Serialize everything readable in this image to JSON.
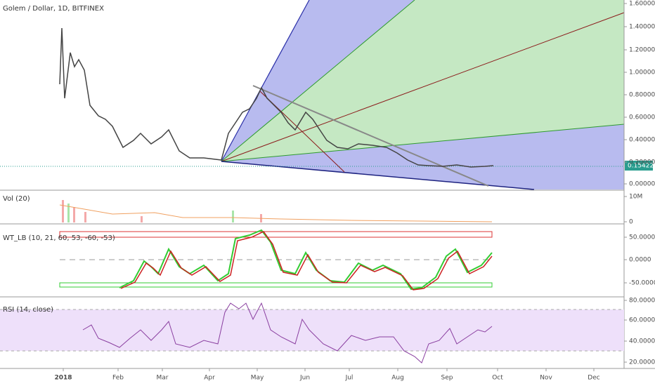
{
  "header": {
    "title": "Golem / Dollar, 1D, BITFINEX"
  },
  "price_axis": [
    "1.60000",
    "1.40000",
    "1.20000",
    "1.00000",
    "0.80000",
    "0.60000",
    "0.40000",
    "0.20000",
    "0.00000"
  ],
  "current_price": "0.15422",
  "volume": {
    "label": "Vol (20)",
    "axis": [
      "10M",
      "0"
    ]
  },
  "wt": {
    "label": "WT_LB (10, 21, 60, 53, -60, -53)",
    "axis": [
      "50.0000",
      "0.0000",
      "-50.0000"
    ]
  },
  "rsi": {
    "label": "RSI (14, close)",
    "axis": [
      "80.0000",
      "60.0000",
      "40.0000",
      "20.0000"
    ]
  },
  "time_axis": [
    "2018",
    "Feb",
    "Mar",
    "Apr",
    "May",
    "Jun",
    "Jul",
    "Aug",
    "Sep",
    "Oct",
    "Nov",
    "Dec"
  ]
}
